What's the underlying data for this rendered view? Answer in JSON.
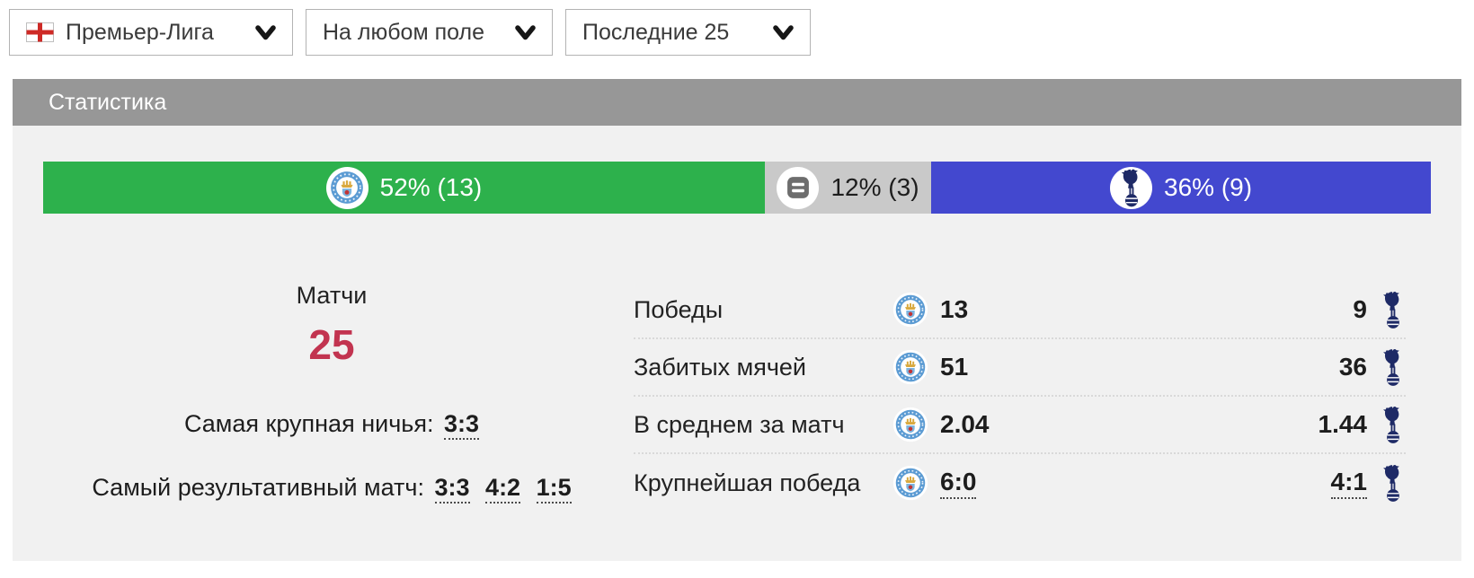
{
  "filters": [
    {
      "label": "Премьер-Лига",
      "icon": "england-flag"
    },
    {
      "label": "На любом поле"
    },
    {
      "label": "Последние 25"
    }
  ],
  "panel": {
    "title": "Статистика"
  },
  "bar": {
    "home": {
      "label": "52% (13)",
      "pct": 52,
      "count": 13,
      "color": "#2db14c",
      "icon": "man-city-badge"
    },
    "draw": {
      "label": "12% (3)",
      "pct": 12,
      "count": 3,
      "color": "#c9c9c9",
      "icon": "draw-icon"
    },
    "away": {
      "label": "36% (9)",
      "pct": 36,
      "count": 9,
      "color": "#4348cf",
      "icon": "tottenham-badge"
    }
  },
  "summary": {
    "matches_label": "Матчи",
    "matches_value": "25",
    "matches_color": "#c23450",
    "biggest_draw_label": "Самая крупная ничья:",
    "biggest_draw_value": "3:3",
    "top_scoring_label": "Самый результативный матч:",
    "top_scoring_values": [
      "3:3",
      "4:2",
      "1:5"
    ]
  },
  "table": {
    "rows": [
      {
        "label": "Победы",
        "home": "13",
        "away": "9"
      },
      {
        "label": "Забитых мячей",
        "home": "51",
        "away": "36"
      },
      {
        "label": "В среднем за матч",
        "home": "2.04",
        "away": "1.44"
      },
      {
        "label": "Крупнейшая победа",
        "home": "6:0",
        "away": "4:1"
      }
    ]
  },
  "chart_data": {
    "type": "bar",
    "title": "Статистика — распределение результатов (последние 25 матчей)",
    "categories": [
      "home_wins",
      "draws",
      "away_wins"
    ],
    "values": [
      13,
      3,
      9
    ],
    "percentages": [
      52,
      12,
      36
    ],
    "total_matches": 25,
    "colors": [
      "#2db14c",
      "#c9c9c9",
      "#4348cf"
    ]
  }
}
